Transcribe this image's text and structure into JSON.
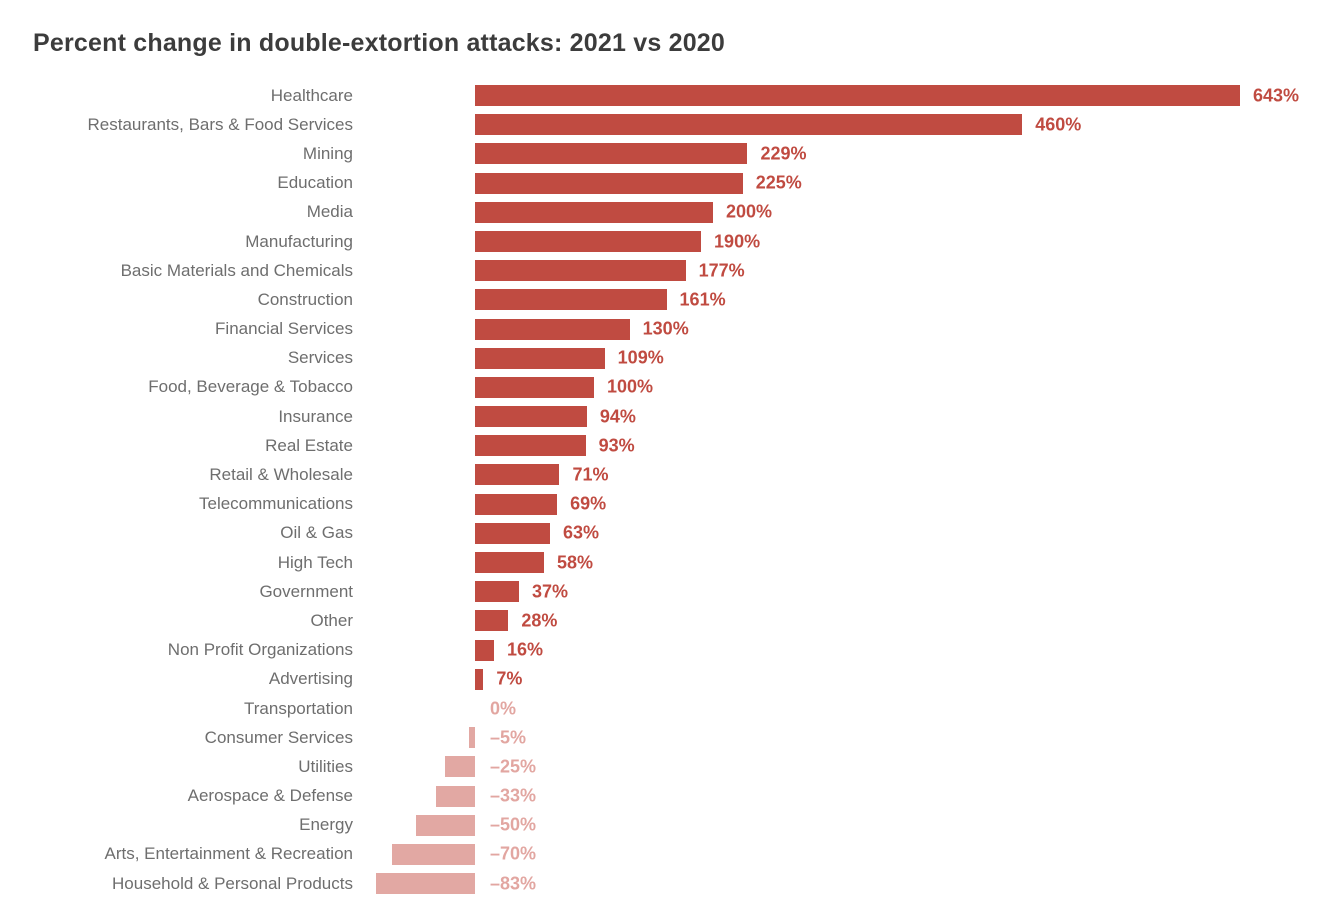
{
  "title": "Percent change in double-extortion attacks: 2021 vs 2020",
  "colors": {
    "title": "#3c3c3c",
    "category_label": "#6e6e6e",
    "positive_bar": "#c04b41",
    "negative_bar": "#e2a8a3",
    "negative_value_text": "#e2a6a1"
  },
  "chart_data": {
    "type": "bar",
    "orientation": "horizontal",
    "title": "Percent change in double-extortion attacks: 2021 vs 2020",
    "xlabel": "",
    "ylabel": "",
    "xlim": [
      -100,
      700
    ],
    "grid": false,
    "legend": false,
    "value_unit": "%",
    "categories": [
      "Healthcare",
      "Restaurants, Bars & Food Services",
      "Mining",
      "Education",
      "Media",
      "Manufacturing",
      "Basic Materials and Chemicals",
      "Construction",
      "Financial Services",
      "Services",
      "Food, Beverage & Tobacco",
      "Insurance",
      "Real Estate",
      "Retail & Wholesale",
      "Telecommunications",
      "Oil & Gas",
      "High Tech",
      "Government",
      "Other",
      "Non Profit Organizations",
      "Advertising",
      "Transportation",
      "Consumer Services",
      "Utilities",
      "Aerospace & Defense",
      "Energy",
      "Arts, Entertainment & Recreation",
      "Household & Personal Products"
    ],
    "values": [
      643,
      460,
      229,
      225,
      200,
      190,
      177,
      161,
      130,
      109,
      100,
      94,
      93,
      71,
      69,
      63,
      58,
      37,
      28,
      16,
      7,
      0,
      -5,
      -25,
      -33,
      -50,
      -70,
      -83
    ],
    "value_labels": [
      "643%",
      "460%",
      "229%",
      "225%",
      "200%",
      "190%",
      "177%",
      "161%",
      "130%",
      "109%",
      "100%",
      "94%",
      "93%",
      "71%",
      "69%",
      "63%",
      "58%",
      "37%",
      "28%",
      "16%",
      "7%",
      "0%",
      "–5%",
      "–25%",
      "–33%",
      "–50%",
      "–70%",
      "–83%"
    ]
  }
}
